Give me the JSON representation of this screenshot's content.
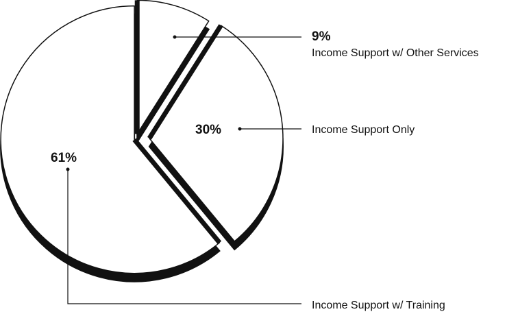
{
  "chart_data": {
    "type": "pie",
    "title": "",
    "slices": [
      {
        "label": "Income Support w/ Other Services",
        "value": 9,
        "value_label": "9%"
      },
      {
        "label": "Income Support Only",
        "value": 30,
        "value_label": "30%"
      },
      {
        "label": "Income Support w/ Training",
        "value": 61,
        "value_label": "61%"
      }
    ],
    "style": "3d-exploded-outline",
    "colors": {
      "fill": "#ffffff",
      "edge": "#111111"
    },
    "legend": "callout-lines"
  }
}
